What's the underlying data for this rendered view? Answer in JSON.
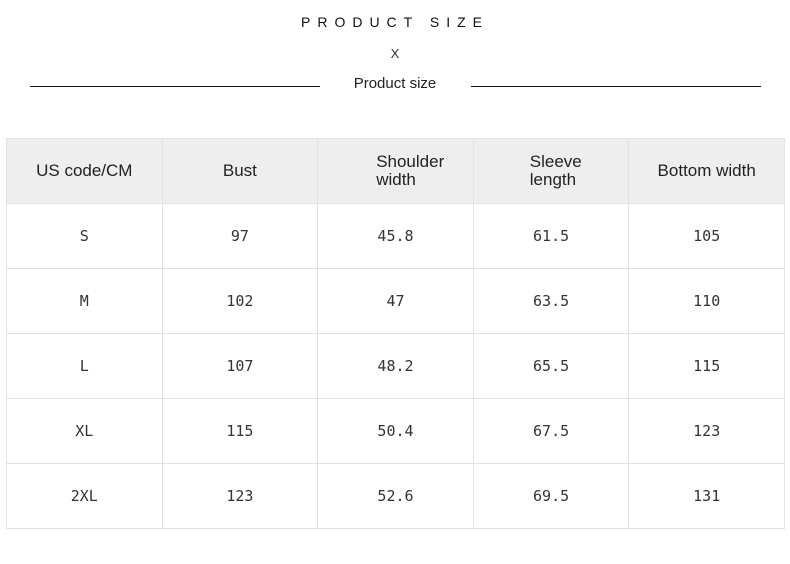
{
  "header": {
    "title": "PRODUCT SIZE",
    "separator": "X",
    "subtitle": "Product size"
  },
  "table": {
    "columns": [
      "US code/CM",
      "Bust",
      "Shoulder width",
      "Sleeve length",
      "Bottom width"
    ],
    "rows": [
      [
        "S",
        "97",
        "45.8",
        "61.5",
        "105"
      ],
      [
        "M",
        "102",
        "47",
        "63.5",
        "110"
      ],
      [
        "L",
        "107",
        "48.2",
        "65.5",
        "115"
      ],
      [
        "XL",
        "115",
        "50.4",
        "67.5",
        "123"
      ],
      [
        "2XL",
        "123",
        "52.6",
        "69.5",
        "131"
      ]
    ]
  }
}
